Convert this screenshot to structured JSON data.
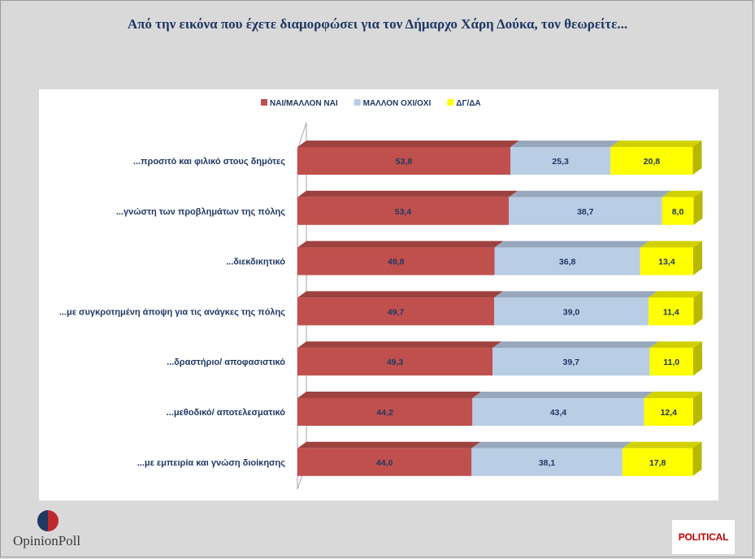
{
  "header": {
    "title": "Από την εικόνα που έχετε διαμορφώσει για τον Δήμαρχο Χάρη Δούκα, τον θεωρείτε..."
  },
  "logos": {
    "left": "OpinionPoll",
    "right": "POLITICAL"
  },
  "chart_data": {
    "type": "bar",
    "orientation": "horizontal",
    "stacked": true,
    "three_d": true,
    "legend_position": "top",
    "categories": [
      "...προσιτό και φιλικό στους δημότες",
      "...γνώστη των προβλημάτων της πόλης",
      "...διεκδικητικό",
      "...με συγκροτημένη άποψη για τις ανάγκες της πόλης",
      "...δραστήριο/ αποφασιστικό",
      "...μεθοδικό/ αποτελεσματικό",
      "...με εμπειρία και γνώση διοίκησης"
    ],
    "series": [
      {
        "name": "ΝΑΙ/ΜΑΛΛΟΝ ΝΑΙ",
        "color": "#c0504d",
        "values": [
          53.8,
          53.4,
          49.8,
          49.7,
          49.3,
          44.2,
          44.0
        ],
        "labels": [
          "53,8",
          "53,4",
          "49,8",
          "49,7",
          "49,3",
          "44,2",
          "44,0"
        ]
      },
      {
        "name": "ΜΑΛΛΟΝ ΟΧΙ/ΟΧΙ",
        "color": "#b9cde5",
        "values": [
          25.3,
          38.7,
          36.8,
          39.0,
          39.7,
          43.4,
          38.1
        ],
        "labels": [
          "25,3",
          "38,7",
          "36,8",
          "39,0",
          "39,7",
          "43,4",
          "38,1"
        ]
      },
      {
        "name": "ΔΓ/ΔΑ",
        "color": "#ffff00",
        "values": [
          20.8,
          8.0,
          13.4,
          11.4,
          11.0,
          12.4,
          17.8
        ],
        "labels": [
          "20,8",
          "8,0",
          "13,4",
          "11,4",
          "11,0",
          "12,4",
          "17,8"
        ]
      }
    ]
  }
}
